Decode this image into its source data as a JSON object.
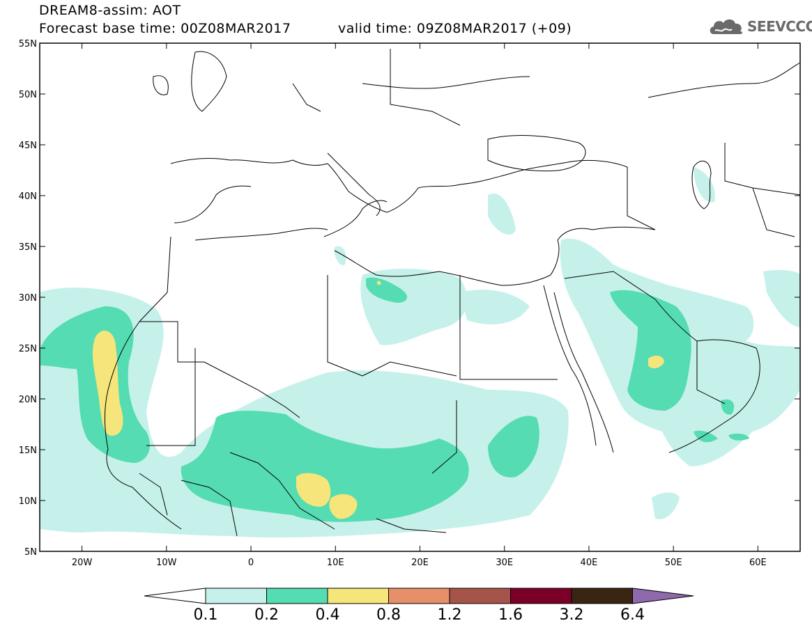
{
  "header": {
    "title": "DREAM8-assim: AOT",
    "base_time": "Forecast base time: 00Z08MAR2017",
    "valid_time": "valid time: 09Z08MAR2017 (+09)",
    "logo_text": "SEEVCCC",
    "logo_icon": "cloud-logo-icon"
  },
  "map": {
    "lat_range": [
      5,
      55
    ],
    "lon_range": [
      -25,
      65
    ],
    "lat_ticks": [
      "5N",
      "10N",
      "15N",
      "20N",
      "25N",
      "30N",
      "35N",
      "40N",
      "45N",
      "50N",
      "55N"
    ],
    "lon_ticks": [
      "20W",
      "10W",
      "0",
      "10E",
      "20E",
      "30E",
      "40E",
      "50E",
      "60E"
    ]
  },
  "colorbar": {
    "labels": [
      "0.1",
      "0.2",
      "0.4",
      "0.8",
      "1.2",
      "1.6",
      "3.2",
      "6.4"
    ],
    "colors": [
      "#ffffff",
      "#c6f1ea",
      "#55dcb2",
      "#f5e57a",
      "#e6906a",
      "#a6534a",
      "#7a0027",
      "#3a2512",
      "#8e6aac"
    ]
  }
}
